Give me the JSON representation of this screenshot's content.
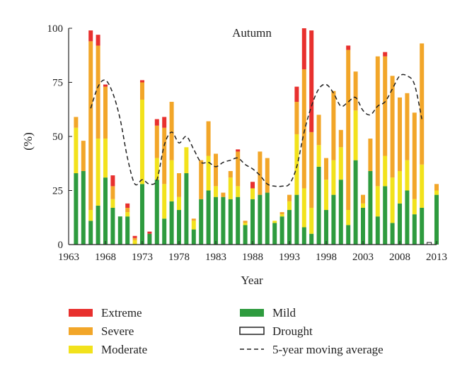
{
  "chart_data": {
    "type": "bar",
    "stacked": true,
    "title": "Autumn",
    "xlabel": "Year",
    "ylabel": "(%)",
    "ylim": [
      0,
      100
    ],
    "xlim": [
      1963,
      2013
    ],
    "x_ticks": [
      "1963",
      "1968",
      "1973",
      "1978",
      "1983",
      "1988",
      "1993",
      "1998",
      "2003",
      "2008",
      "2013"
    ],
    "y_ticks": [
      "0",
      "25",
      "50",
      "75",
      "100"
    ],
    "x": [
      1964,
      1965,
      1966,
      1967,
      1968,
      1969,
      1970,
      1971,
      1972,
      1973,
      1974,
      1975,
      1976,
      1977,
      1978,
      1979,
      1980,
      1981,
      1982,
      1983,
      1984,
      1985,
      1986,
      1987,
      1988,
      1989,
      1990,
      1991,
      1992,
      1993,
      1994,
      1995,
      1996,
      1997,
      1998,
      1999,
      2000,
      2001,
      2002,
      2003,
      2004,
      2005,
      2006,
      2007,
      2008,
      2009,
      2010,
      2011,
      2012,
      2013
    ],
    "series": [
      {
        "name": "Mild",
        "color": "#2e9b3e",
        "values": [
          33,
          34,
          11,
          18,
          31,
          17,
          13,
          13,
          0,
          28,
          5,
          30,
          12,
          20,
          16,
          33,
          7,
          21,
          25,
          22,
          22,
          21,
          22,
          9,
          21,
          23,
          24,
          10,
          13,
          16,
          23,
          8,
          5,
          36,
          16,
          23,
          30,
          9,
          39,
          17,
          34,
          13,
          27,
          10,
          19,
          25,
          14,
          17,
          0,
          23
        ]
      },
      {
        "name": "Moderate",
        "color": "#f2e21c",
        "values": [
          21,
          0,
          5,
          31,
          18,
          4,
          0,
          2,
          2,
          39,
          0,
          10,
          16,
          19,
          6,
          12,
          4,
          0,
          16,
          5,
          0,
          10,
          5,
          1,
          5,
          0,
          0,
          1,
          1,
          4,
          28,
          18,
          12,
          10,
          14,
          16,
          15,
          7,
          23,
          2,
          0,
          14,
          14,
          21,
          15,
          14,
          7,
          20,
          0,
          2
        ]
      },
      {
        "name": "Severe",
        "color": "#f2a629",
        "values": [
          5,
          14,
          78,
          43,
          24,
          6,
          0,
          2,
          1,
          8,
          0,
          15,
          26,
          27,
          11,
          0,
          1,
          18,
          16,
          15,
          2,
          3,
          16,
          1,
          0,
          20,
          16,
          0,
          1,
          3,
          15,
          55,
          35,
          14,
          10,
          32,
          8,
          74,
          18,
          4,
          15,
          60,
          46,
          47,
          34,
          31,
          40,
          56,
          0,
          3
        ]
      },
      {
        "name": "Extreme",
        "color": "#e8302e",
        "values": [
          0,
          0,
          5,
          5,
          1,
          5,
          0,
          2,
          1,
          1,
          1,
          3,
          5,
          0,
          0,
          0,
          0,
          0,
          0,
          0,
          0,
          0,
          1,
          0,
          3,
          0,
          0,
          0,
          0,
          0,
          7,
          19,
          47,
          0,
          0,
          0,
          0,
          2,
          0,
          0,
          0,
          0,
          2,
          0,
          0,
          0,
          0,
          0,
          0,
          0
        ]
      },
      {
        "name": "Drought",
        "color": "#ffffff",
        "values": [
          0,
          0,
          0,
          0,
          0,
          0,
          0,
          0,
          0,
          0,
          0,
          0,
          0,
          0,
          0,
          0,
          0,
          0,
          0,
          0,
          0,
          0,
          0,
          0,
          0,
          0,
          0,
          0,
          0,
          0,
          0,
          0,
          0,
          0,
          0,
          0,
          0,
          0,
          0,
          0,
          0,
          0,
          0,
          0,
          0,
          0,
          0,
          0,
          1,
          0
        ]
      }
    ],
    "moving_average": {
      "name": "5-year moving average",
      "x": [
        1966,
        1967,
        1968,
        1969,
        1970,
        1971,
        1972,
        1973,
        1974,
        1975,
        1976,
        1977,
        1978,
        1979,
        1980,
        1981,
        1982,
        1983,
        1984,
        1985,
        1986,
        1987,
        1988,
        1989,
        1990,
        1991,
        1992,
        1993,
        1994,
        1995,
        1996,
        1997,
        1998,
        1999,
        2000,
        2001,
        2002,
        2003,
        2004,
        2005,
        2006,
        2007,
        2008,
        2009,
        2010,
        2011
      ],
      "values": [
        63,
        73,
        76,
        70,
        58,
        40,
        28,
        30,
        28,
        30,
        46,
        52,
        47,
        50,
        44,
        38,
        38,
        36,
        38,
        39,
        40,
        37,
        35,
        32,
        28,
        27,
        27,
        28,
        36,
        52,
        64,
        72,
        74,
        70,
        64,
        66,
        68,
        62,
        60,
        64,
        66,
        72,
        78,
        78,
        74,
        58
      ]
    },
    "legend": {
      "placement": "bottom",
      "entries": [
        "Extreme",
        "Severe",
        "Moderate",
        "Mild",
        "Drought",
        "5-year moving average"
      ]
    },
    "grid": false
  }
}
